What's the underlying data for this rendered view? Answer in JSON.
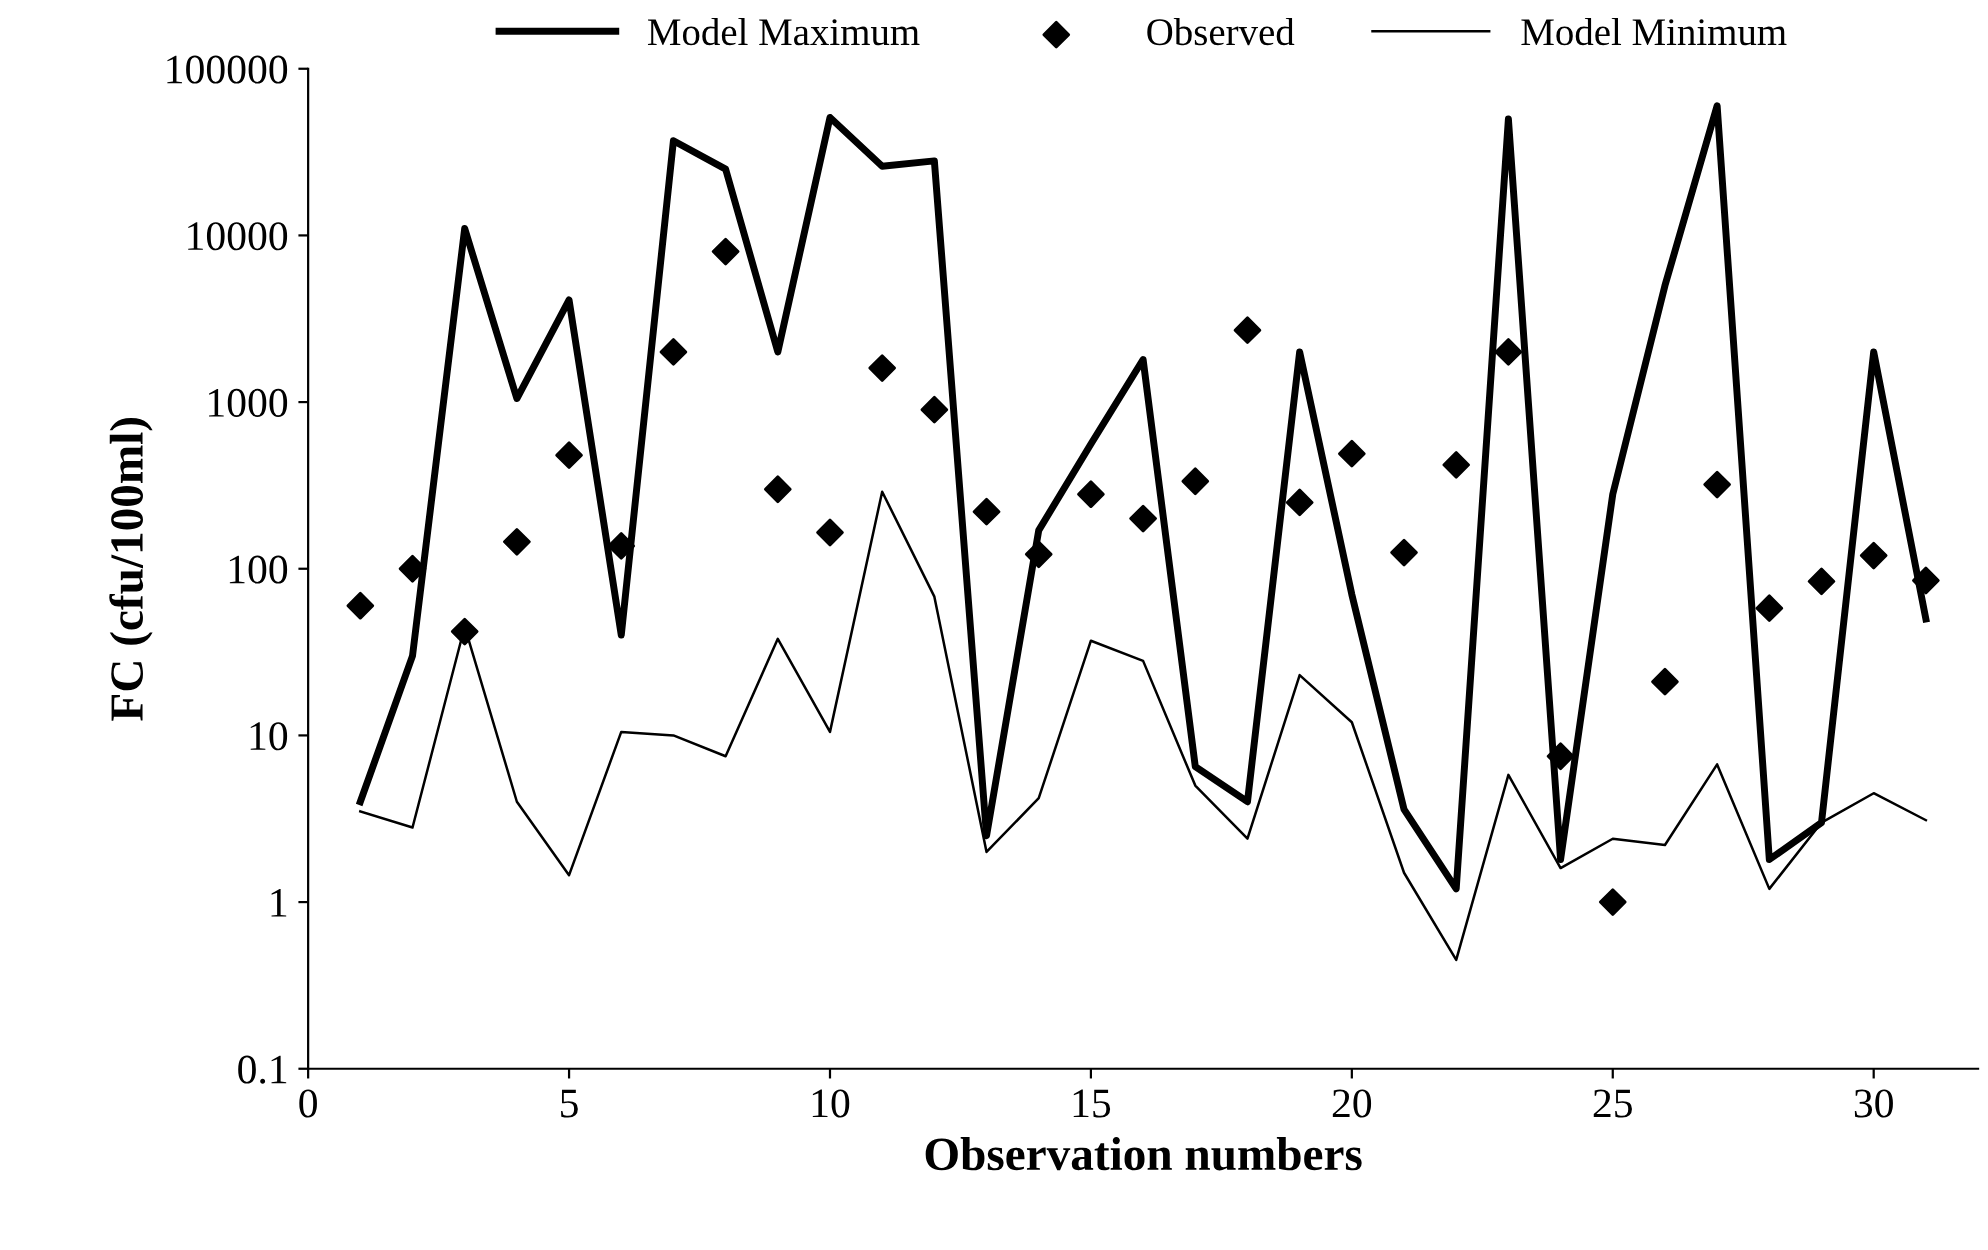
{
  "chart_data": {
    "type": "line",
    "xlabel": "Observation numbers",
    "ylabel": "FC (cfu/100ml)",
    "log": "y",
    "grid": false,
    "legend": "top",
    "x": [
      1,
      2,
      3,
      4,
      5,
      6,
      7,
      8,
      9,
      10,
      11,
      12,
      13,
      14,
      15,
      16,
      17,
      18,
      19,
      20,
      21,
      22,
      23,
      24,
      25,
      26,
      27,
      28,
      29,
      30,
      31
    ],
    "xlim": [
      0,
      32
    ],
    "xticks": [
      0,
      5,
      10,
      15,
      20,
      25,
      30
    ],
    "ylim": [
      0.1,
      100000
    ],
    "yticks": [
      0.1,
      1,
      10,
      100,
      1000,
      10000,
      100000
    ],
    "series": [
      {
        "name": "Model Maximum",
        "color": "#000000",
        "line_style": "solid",
        "marker": "none",
        "values": [
          4,
          30,
          11000,
          1050,
          4100,
          40,
          37000,
          25000,
          2000,
          51000,
          26000,
          28000,
          2.5,
          170,
          560,
          1800,
          6.5,
          4,
          2000,
          70,
          3.6,
          1.2,
          50000,
          1.8,
          280,
          5000,
          60000,
          1.8,
          3,
          2000,
          50
        ]
      },
      {
        "name": "Observed",
        "type": "scatter",
        "color": "#000000",
        "marker": "diamond",
        "values": [
          60,
          100,
          42,
          145,
          480,
          137,
          2000,
          8000,
          300,
          165,
          1600,
          900,
          220,
          122,
          280,
          200,
          335,
          2700,
          250,
          490,
          125,
          420,
          2000,
          7.5,
          1,
          21,
          320,
          58,
          84,
          120,
          85
        ]
      },
      {
        "name": "Model Minimum",
        "color": "#000000",
        "line_style": "solid",
        "marker": "none",
        "values": [
          3.5,
          2.8,
          45,
          4,
          1.45,
          10.5,
          10,
          7.5,
          38,
          10.5,
          290,
          68,
          2,
          4.2,
          37,
          28,
          5,
          2.4,
          23,
          12,
          1.5,
          0.45,
          5.8,
          1.6,
          2.4,
          2.2,
          6.7,
          1.2,
          3,
          4.5,
          3.1
        ]
      }
    ]
  }
}
